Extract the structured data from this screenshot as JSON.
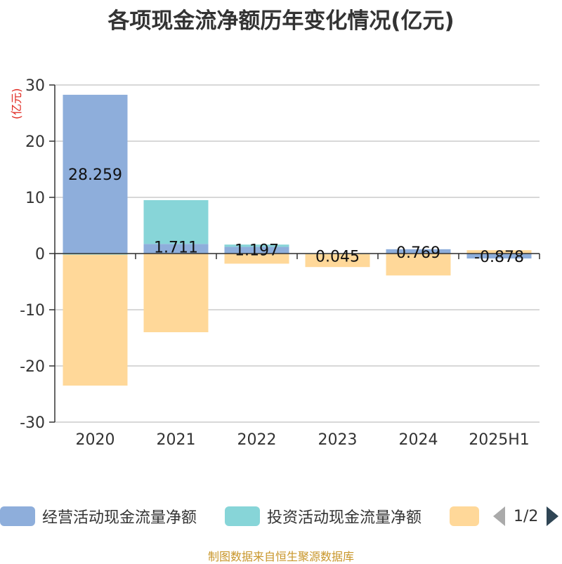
{
  "title": "各项现金流净额历年变化情况(亿元)",
  "unit_label": "(亿元)",
  "source": "制图数据来自恒生聚源数据库",
  "legend": {
    "items": [
      {
        "label": "经营活动现金流量净额",
        "color": "#8eaedb"
      },
      {
        "label": "投资活动现金流量净额",
        "color": "#87d5d8"
      },
      {
        "label": "",
        "color": "#ffd899"
      }
    ],
    "pager_text": "1/2"
  },
  "chart_data": {
    "type": "bar",
    "stacked": true,
    "categories": [
      "2020",
      "2021",
      "2022",
      "2023",
      "2024",
      "2025H1"
    ],
    "ylim": [
      -30,
      30
    ],
    "yticks": [
      -30,
      -20,
      -10,
      0,
      10,
      20,
      30
    ],
    "grid": true,
    "series": [
      {
        "name": "经营活动现金流量净额",
        "color": "#8eaedb",
        "values": [
          28.259,
          1.711,
          1.197,
          0.045,
          0.769,
          -0.878
        ],
        "labels": [
          "28.259",
          "1.711",
          "1.197",
          "0.045",
          "0.769",
          "-0.878"
        ]
      },
      {
        "name": "投资活动现金流量净额",
        "color": "#87d5d8",
        "values": [
          -0.2,
          7.8,
          0.4,
          -0.1,
          0.0,
          0.0
        ]
      },
      {
        "name": "",
        "color": "#ffd899",
        "values": [
          -23.3,
          -14.0,
          -1.8,
          -2.3,
          -3.9,
          0.6
        ]
      }
    ]
  }
}
